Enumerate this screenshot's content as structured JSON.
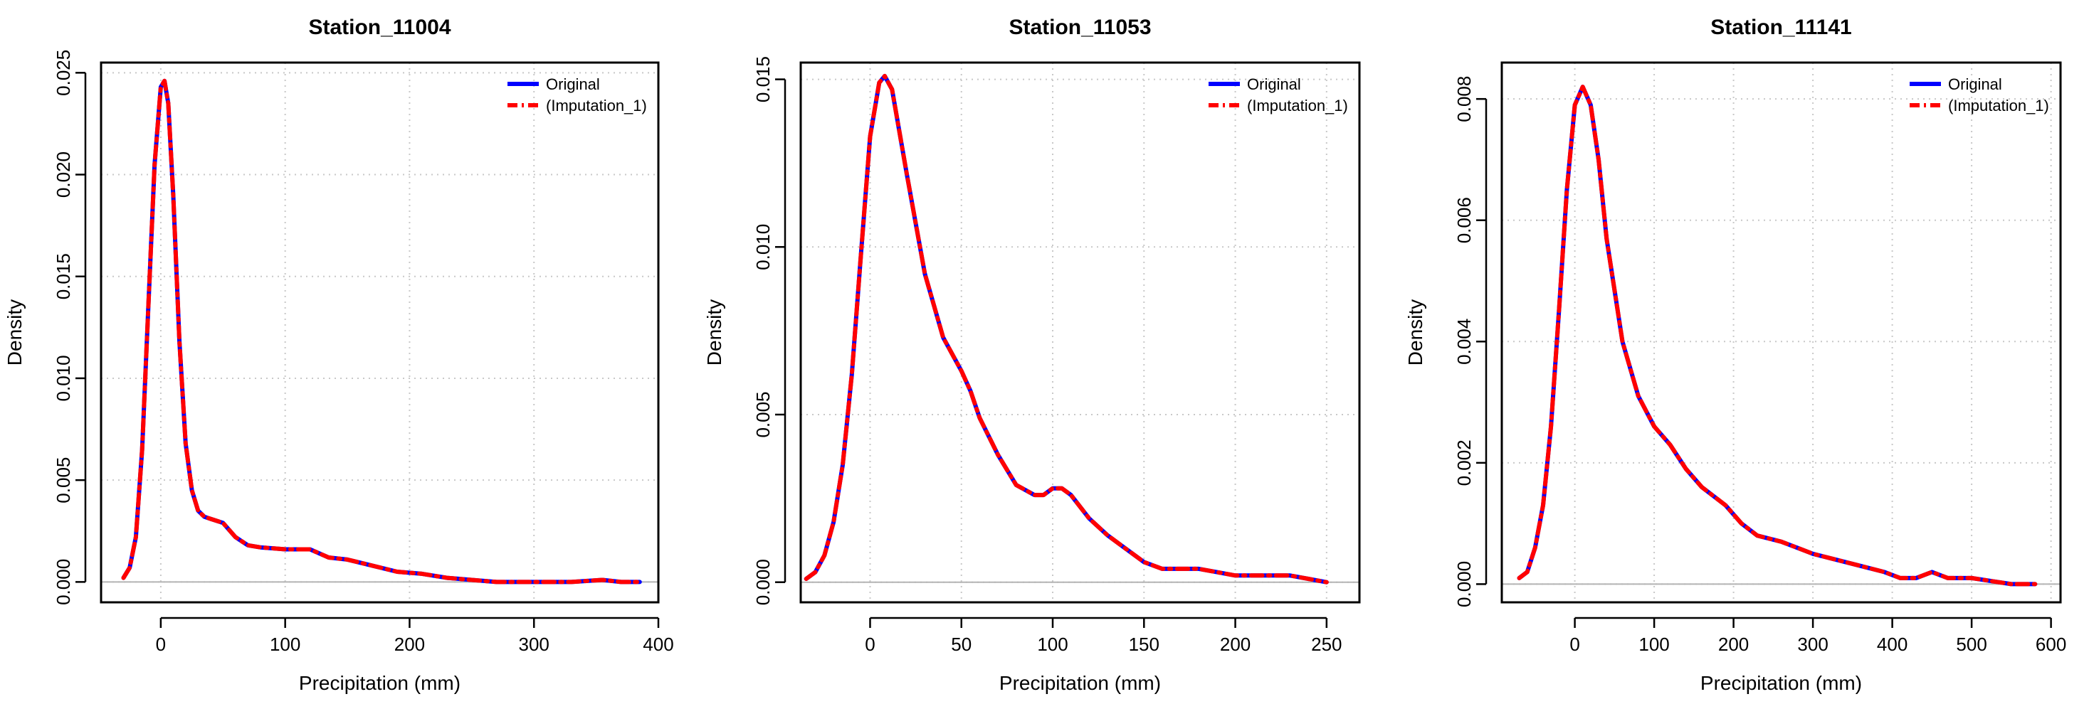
{
  "chart_data": [
    {
      "type": "line",
      "title": "Station_11004",
      "xlabel": "Precipitation (mm)",
      "ylabel": "Density",
      "xlim": [
        -48,
        400
      ],
      "ylim": [
        -0.001,
        0.0255
      ],
      "xticks": [
        0,
        100,
        200,
        300,
        400
      ],
      "yticks": [
        0.0,
        0.005,
        0.01,
        0.015,
        0.02,
        0.025
      ],
      "ytick_labels": [
        "0.000",
        "0.005",
        "0.010",
        "0.015",
        "0.020",
        "0.025"
      ],
      "grid": true,
      "legend": "top-right",
      "series": [
        {
          "name": "Original",
          "color": "#0000ff",
          "dash": "solid",
          "x": [
            -30,
            -25,
            -20,
            -15,
            -10,
            -5,
            0,
            3,
            6,
            10,
            15,
            20,
            25,
            30,
            35,
            40,
            50,
            60,
            70,
            80,
            100,
            120,
            135,
            150,
            170,
            190,
            210,
            230,
            250,
            270,
            300,
            330,
            355,
            370,
            385
          ],
          "y": [
            0.0002,
            0.0007,
            0.0022,
            0.0065,
            0.0135,
            0.0205,
            0.0243,
            0.0246,
            0.0235,
            0.019,
            0.0118,
            0.0068,
            0.0045,
            0.0035,
            0.0032,
            0.0031,
            0.0029,
            0.0022,
            0.0018,
            0.0017,
            0.0016,
            0.0016,
            0.0012,
            0.0011,
            0.0008,
            0.0005,
            0.0004,
            0.0002,
            0.0001,
            0.0,
            0.0,
            0.0,
            0.0001,
            0.0,
            0.0
          ]
        },
        {
          "name": "(Imputation_1)",
          "color": "#ff0000",
          "dash": "dashdot",
          "x": [
            -30,
            -25,
            -20,
            -15,
            -10,
            -5,
            0,
            3,
            6,
            10,
            15,
            20,
            25,
            30,
            35,
            40,
            50,
            60,
            70,
            80,
            100,
            120,
            135,
            150,
            170,
            190,
            210,
            230,
            250,
            270,
            300,
            330,
            355,
            370,
            385
          ],
          "y": [
            0.0002,
            0.0007,
            0.0022,
            0.0065,
            0.0135,
            0.0205,
            0.0243,
            0.0246,
            0.0235,
            0.019,
            0.0118,
            0.0068,
            0.0045,
            0.0035,
            0.0032,
            0.0031,
            0.0029,
            0.0022,
            0.0018,
            0.0017,
            0.0016,
            0.0016,
            0.0012,
            0.0011,
            0.0008,
            0.0005,
            0.0004,
            0.0002,
            0.0001,
            0.0,
            0.0,
            0.0,
            0.0001,
            0.0,
            0.0
          ]
        }
      ]
    },
    {
      "type": "line",
      "title": "Station_11053",
      "xlabel": "Precipitation (mm)",
      "ylabel": "Density",
      "xlim": [
        -38,
        268
      ],
      "ylim": [
        -0.0006,
        0.0155
      ],
      "xticks": [
        0,
        50,
        100,
        150,
        200,
        250
      ],
      "yticks": [
        0.0,
        0.005,
        0.01,
        0.015
      ],
      "ytick_labels": [
        "0.000",
        "0.005",
        "0.010",
        "0.015"
      ],
      "grid": true,
      "legend": "top-right",
      "series": [
        {
          "name": "Original",
          "color": "#0000ff",
          "dash": "solid",
          "x": [
            -35,
            -30,
            -25,
            -20,
            -15,
            -10,
            -5,
            0,
            5,
            8,
            12,
            20,
            30,
            40,
            50,
            55,
            60,
            70,
            80,
            90,
            95,
            100,
            105,
            110,
            120,
            130,
            140,
            150,
            160,
            170,
            180,
            190,
            200,
            210,
            220,
            230,
            240,
            250
          ],
          "y": [
            0.0001,
            0.0003,
            0.0008,
            0.0018,
            0.0035,
            0.0062,
            0.0098,
            0.0133,
            0.0149,
            0.0151,
            0.0147,
            0.0122,
            0.0092,
            0.0073,
            0.0063,
            0.0057,
            0.0049,
            0.0038,
            0.0029,
            0.0026,
            0.0026,
            0.0028,
            0.0028,
            0.0026,
            0.0019,
            0.0014,
            0.001,
            0.0006,
            0.0004,
            0.0004,
            0.0004,
            0.0003,
            0.0002,
            0.0002,
            0.0002,
            0.0002,
            0.0001,
            0.0
          ]
        },
        {
          "name": "(Imputation_1)",
          "color": "#ff0000",
          "dash": "dashdot",
          "x": [
            -35,
            -30,
            -25,
            -20,
            -15,
            -10,
            -5,
            0,
            5,
            8,
            12,
            20,
            30,
            40,
            50,
            55,
            60,
            70,
            80,
            90,
            95,
            100,
            105,
            110,
            120,
            130,
            140,
            150,
            160,
            170,
            180,
            190,
            200,
            210,
            220,
            230,
            240,
            250
          ],
          "y": [
            0.0001,
            0.0003,
            0.0008,
            0.0018,
            0.0035,
            0.0062,
            0.0098,
            0.0133,
            0.0149,
            0.0151,
            0.0147,
            0.0122,
            0.0092,
            0.0073,
            0.0063,
            0.0057,
            0.0049,
            0.0038,
            0.0029,
            0.0026,
            0.0026,
            0.0028,
            0.0028,
            0.0026,
            0.0019,
            0.0014,
            0.001,
            0.0006,
            0.0004,
            0.0004,
            0.0004,
            0.0003,
            0.0002,
            0.0002,
            0.0002,
            0.0002,
            0.0001,
            0.0
          ]
        }
      ]
    },
    {
      "type": "line",
      "title": "Station_11141",
      "xlabel": "Precipitation (mm)",
      "ylabel": "Density",
      "xlim": [
        -92,
        612
      ],
      "ylim": [
        -0.0003,
        0.0086
      ],
      "xticks": [
        0,
        100,
        200,
        300,
        400,
        500,
        600
      ],
      "yticks": [
        0.0,
        0.002,
        0.004,
        0.006,
        0.008
      ],
      "ytick_labels": [
        "0.000",
        "0.002",
        "0.004",
        "0.006",
        "0.008"
      ],
      "grid": true,
      "legend": "top-right",
      "series": [
        {
          "name": "Original",
          "color": "#0000ff",
          "dash": "solid",
          "x": [
            -70,
            -60,
            -50,
            -40,
            -30,
            -20,
            -10,
            0,
            10,
            20,
            30,
            40,
            60,
            80,
            100,
            120,
            140,
            160,
            190,
            210,
            230,
            260,
            280,
            300,
            330,
            360,
            390,
            410,
            430,
            450,
            470,
            500,
            550,
            580
          ],
          "y": [
            0.0001,
            0.0002,
            0.0006,
            0.0013,
            0.0026,
            0.0045,
            0.0065,
            0.0079,
            0.0082,
            0.0079,
            0.007,
            0.0057,
            0.004,
            0.0031,
            0.0026,
            0.0023,
            0.0019,
            0.0016,
            0.0013,
            0.001,
            0.0008,
            0.0007,
            0.0006,
            0.0005,
            0.0004,
            0.0003,
            0.0002,
            0.0001,
            0.0001,
            0.0002,
            0.0001,
            0.0001,
            0.0,
            0.0
          ]
        },
        {
          "name": "(Imputation_1)",
          "color": "#ff0000",
          "dash": "dashdot",
          "x": [
            -70,
            -60,
            -50,
            -40,
            -30,
            -20,
            -10,
            0,
            10,
            20,
            30,
            40,
            60,
            80,
            100,
            120,
            140,
            160,
            190,
            210,
            230,
            260,
            280,
            300,
            330,
            360,
            390,
            410,
            430,
            450,
            470,
            500,
            550,
            580
          ],
          "y": [
            0.0001,
            0.0002,
            0.0006,
            0.0013,
            0.0026,
            0.0045,
            0.0065,
            0.0079,
            0.0082,
            0.0079,
            0.007,
            0.0057,
            0.004,
            0.0031,
            0.0026,
            0.0023,
            0.0019,
            0.0016,
            0.0013,
            0.001,
            0.0008,
            0.0007,
            0.0006,
            0.0005,
            0.0004,
            0.0003,
            0.0002,
            0.0001,
            0.0001,
            0.0002,
            0.0001,
            0.0001,
            0.0,
            0.0
          ]
        }
      ]
    }
  ]
}
